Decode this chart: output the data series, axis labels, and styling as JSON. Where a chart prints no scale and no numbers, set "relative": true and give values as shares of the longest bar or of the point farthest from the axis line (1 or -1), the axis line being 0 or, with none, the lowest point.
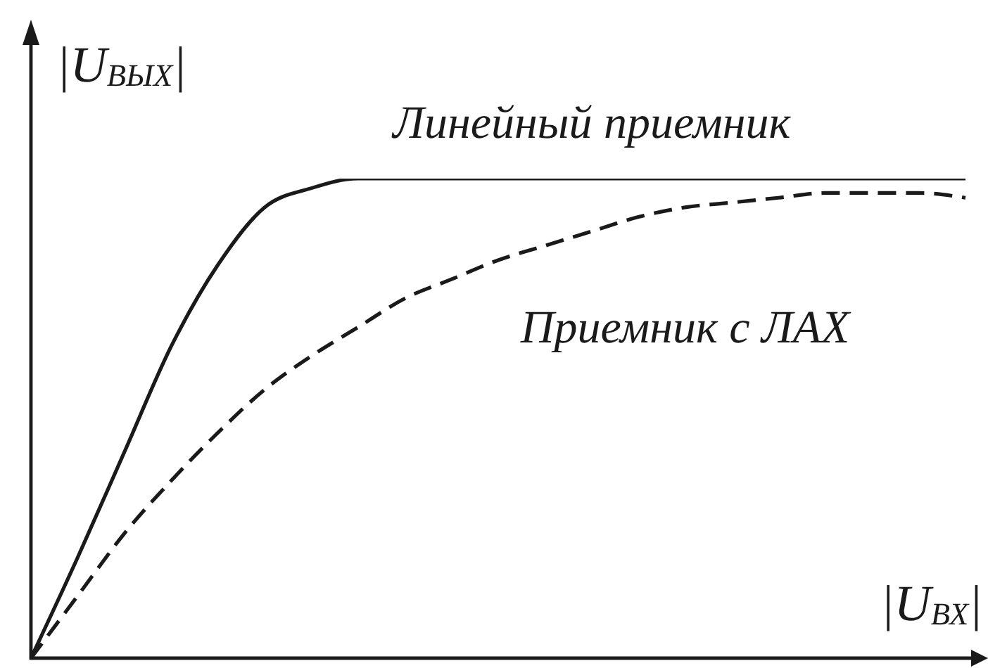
{
  "chart_data": {
    "type": "line",
    "relative": true,
    "xlabel": "|U$_{ВХ}$|",
    "ylabel": "|U$_{ВЫХ}$|",
    "marker": "none",
    "categories": [
      null,
      null,
      null,
      null,
      null,
      null,
      null,
      null,
      null,
      null,
      null,
      null,
      null,
      null,
      null,
      null,
      null,
      null,
      null,
      null,
      null
    ],
    "series": [
      {
        "name": "Линейный приемник",
        "color": "#1a1a1a",
        "line_style": "solid",
        "values": [
          0,
          0.21,
          0.43,
          0.65,
          0.82,
          0.94,
          0.98,
          1,
          1,
          1,
          1,
          1,
          1,
          1,
          1,
          1,
          1,
          1,
          1,
          1,
          1
        ]
      },
      {
        "name": "Приемник с ЛАХ",
        "color": "#1a1a1a",
        "line_style": "dashed",
        "values": [
          0,
          0.13,
          0.26,
          0.37,
          0.47,
          0.56,
          0.63,
          0.69,
          0.75,
          0.79,
          0.83,
          0.86,
          0.89,
          0.92,
          0.94,
          0.95,
          0.96,
          0.97,
          0.97,
          0.97,
          0.96
        ]
      }
    ]
  }
}
